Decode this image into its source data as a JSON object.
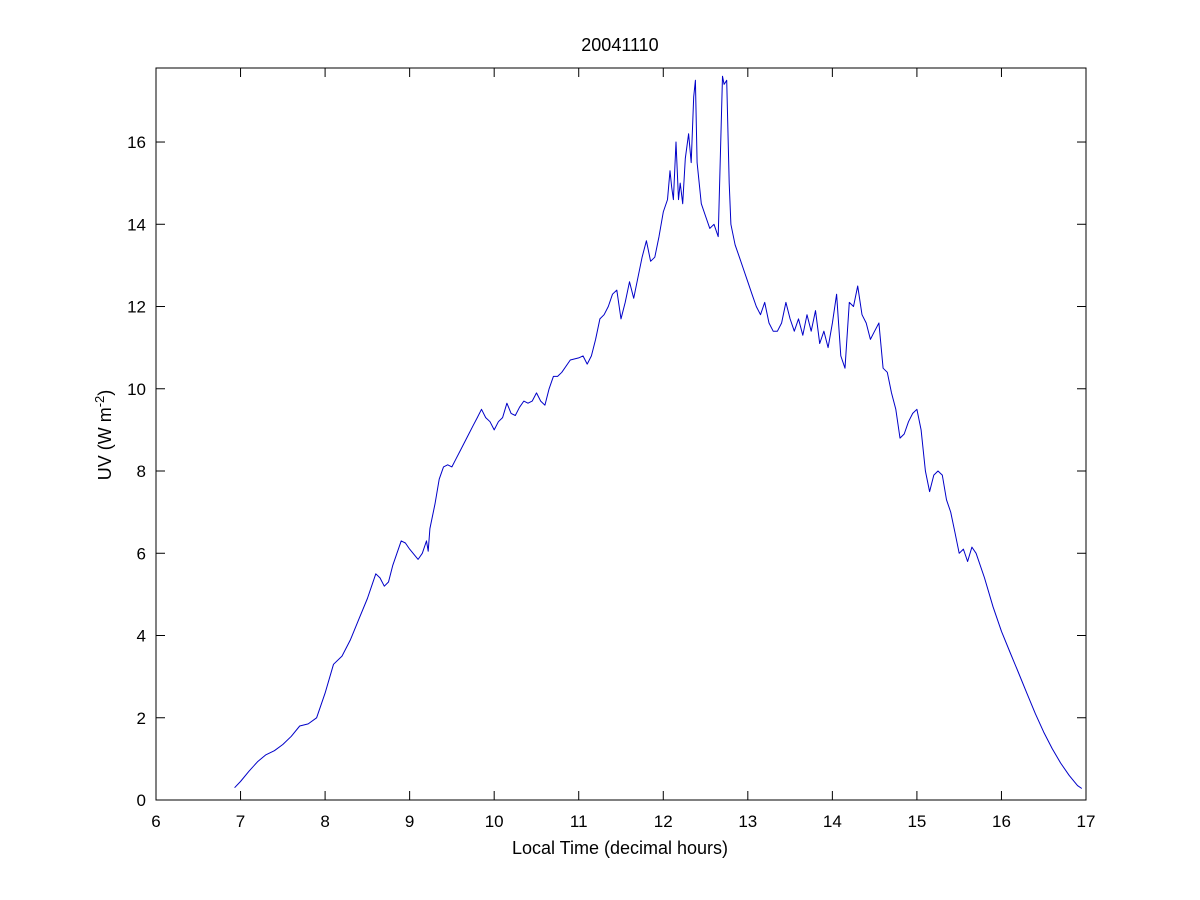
{
  "chart_data": {
    "type": "line",
    "title": "20041110",
    "xlabel": "Local Time (decimal hours)",
    "ylabel_main": "UV (W m",
    "ylabel_sup": "-2",
    "ylabel_close": ")",
    "xlim": [
      6,
      17
    ],
    "ylim": [
      0,
      17.8
    ],
    "xticks": [
      6,
      7,
      8,
      9,
      10,
      11,
      12,
      13,
      14,
      15,
      16,
      17
    ],
    "yticks": [
      0,
      2,
      4,
      6,
      8,
      10,
      12,
      14,
      16
    ],
    "grid": false,
    "line_color": "#0000c8",
    "series": [
      {
        "x": [
          6.93,
          7.0,
          7.1,
          7.2,
          7.3,
          7.4,
          7.5,
          7.6,
          7.7,
          7.8,
          7.9,
          8.0,
          8.1,
          8.2,
          8.3,
          8.4,
          8.5,
          8.6,
          8.65,
          8.7,
          8.75,
          8.8,
          8.9,
          8.95,
          9.0,
          9.1,
          9.15,
          9.2,
          9.22,
          9.24,
          9.3,
          9.35,
          9.4,
          9.45,
          9.5,
          9.55,
          9.6,
          9.7,
          9.75,
          9.8,
          9.85,
          9.9,
          9.95,
          10.0,
          10.05,
          10.1,
          10.15,
          10.2,
          10.25,
          10.3,
          10.35,
          10.4,
          10.45,
          10.5,
          10.55,
          10.6,
          10.65,
          10.7,
          10.75,
          10.8,
          10.9,
          11.0,
          11.05,
          11.1,
          11.15,
          11.2,
          11.25,
          11.3,
          11.35,
          11.4,
          11.45,
          11.5,
          11.55,
          11.6,
          11.65,
          11.7,
          11.75,
          11.8,
          11.85,
          11.9,
          11.95,
          12.0,
          12.05,
          12.08,
          12.1,
          12.12,
          12.15,
          12.18,
          12.2,
          12.23,
          12.26,
          12.3,
          12.33,
          12.36,
          12.38,
          12.4,
          12.45,
          12.5,
          12.55,
          12.6,
          12.65,
          12.7,
          12.72,
          12.75,
          12.78,
          12.8,
          12.85,
          12.9,
          12.95,
          13.0,
          13.05,
          13.1,
          13.15,
          13.2,
          13.25,
          13.3,
          13.35,
          13.4,
          13.45,
          13.5,
          13.55,
          13.6,
          13.65,
          13.7,
          13.75,
          13.8,
          13.85,
          13.9,
          13.95,
          14.0,
          14.05,
          14.1,
          14.15,
          14.2,
          14.25,
          14.3,
          14.35,
          14.4,
          14.45,
          14.5,
          14.55,
          14.6,
          14.65,
          14.7,
          14.75,
          14.8,
          14.85,
          14.9,
          14.95,
          15.0,
          15.05,
          15.1,
          15.15,
          15.2,
          15.25,
          15.3,
          15.35,
          15.4,
          15.45,
          15.5,
          15.55,
          15.6,
          15.65,
          15.7,
          15.8,
          15.9,
          16.0,
          16.1,
          16.2,
          16.3,
          16.4,
          16.5,
          16.6,
          16.7,
          16.8,
          16.9,
          16.95
        ],
        "y": [
          0.3,
          0.45,
          0.7,
          0.93,
          1.1,
          1.2,
          1.35,
          1.55,
          1.8,
          1.85,
          2.0,
          2.6,
          3.3,
          3.5,
          3.9,
          4.4,
          4.9,
          5.5,
          5.4,
          5.2,
          5.3,
          5.7,
          6.3,
          6.25,
          6.1,
          5.85,
          6.0,
          6.3,
          6.05,
          6.6,
          7.2,
          7.8,
          8.1,
          8.15,
          8.1,
          8.3,
          8.5,
          8.9,
          9.1,
          9.3,
          9.5,
          9.3,
          9.2,
          9.0,
          9.2,
          9.3,
          9.65,
          9.4,
          9.35,
          9.55,
          9.7,
          9.65,
          9.7,
          9.9,
          9.7,
          9.6,
          10.0,
          10.3,
          10.3,
          10.4,
          10.7,
          10.75,
          10.8,
          10.6,
          10.8,
          11.2,
          11.7,
          11.8,
          12.0,
          12.3,
          12.4,
          11.7,
          12.1,
          12.6,
          12.2,
          12.7,
          13.2,
          13.6,
          13.1,
          13.2,
          13.7,
          14.3,
          14.6,
          15.3,
          14.9,
          14.6,
          16.0,
          14.6,
          15.0,
          14.5,
          15.6,
          16.2,
          15.5,
          17.1,
          17.5,
          15.5,
          14.5,
          14.2,
          13.9,
          14.0,
          13.7,
          17.6,
          17.4,
          17.5,
          15.0,
          14.0,
          13.5,
          13.2,
          12.9,
          12.6,
          12.3,
          12.0,
          11.8,
          12.1,
          11.6,
          11.4,
          11.4,
          11.6,
          12.1,
          11.7,
          11.4,
          11.7,
          11.3,
          11.8,
          11.4,
          11.9,
          11.1,
          11.4,
          11.0,
          11.6,
          12.3,
          10.8,
          10.5,
          12.1,
          12.0,
          12.5,
          11.8,
          11.6,
          11.2,
          11.4,
          11.6,
          10.5,
          10.4,
          9.9,
          9.5,
          8.8,
          8.9,
          9.2,
          9.4,
          9.5,
          9.0,
          8.0,
          7.5,
          7.9,
          8.0,
          7.9,
          7.3,
          7.0,
          6.5,
          6.0,
          6.1,
          5.8,
          6.15,
          6.0,
          5.4,
          4.7,
          4.1,
          3.6,
          3.1,
          2.6,
          2.1,
          1.65,
          1.25,
          0.9,
          0.6,
          0.35,
          0.28
        ]
      }
    ]
  }
}
